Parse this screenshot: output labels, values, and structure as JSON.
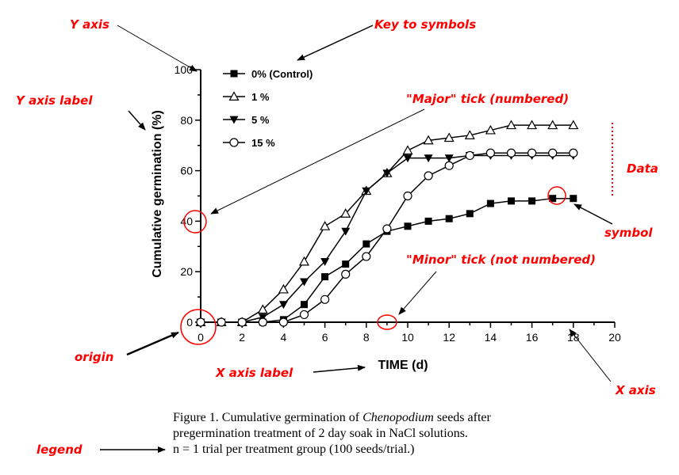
{
  "chart_data": {
    "type": "line",
    "xlabel": "TIME (d)",
    "ylabel": "Cumulative germination (%)",
    "xlim": [
      0,
      20
    ],
    "ylim": [
      0,
      100
    ],
    "xticks": [
      0,
      2,
      4,
      6,
      8,
      10,
      12,
      14,
      16,
      18,
      20
    ],
    "yticks": [
      0,
      20,
      40,
      60,
      80,
      100
    ],
    "grid": false,
    "legend_placement": "top-left",
    "x": [
      0,
      1,
      2,
      3,
      4,
      5,
      6,
      7,
      8,
      9,
      10,
      11,
      12,
      13,
      14,
      15,
      16,
      17,
      18
    ],
    "series": [
      {
        "name": "0% (Control)",
        "marker": "filled-square",
        "values": [
          0,
          0,
          0,
          0,
          1,
          7,
          18,
          23,
          31,
          36,
          38,
          40,
          41,
          43,
          47,
          48,
          48,
          49,
          49
        ]
      },
      {
        "name": "1 %",
        "marker": "open-triangle-up",
        "values": [
          0,
          0,
          0,
          5,
          13,
          24,
          38,
          43,
          52,
          59,
          68,
          72,
          73,
          74,
          76,
          78,
          78,
          78,
          78
        ]
      },
      {
        "name": "5 %",
        "marker": "filled-triangle-down",
        "values": [
          0,
          0,
          0,
          2,
          7,
          16,
          24,
          36,
          52,
          59,
          65,
          65,
          65,
          66,
          66,
          66,
          66,
          66,
          66
        ]
      },
      {
        "name": "15 %",
        "marker": "open-circle",
        "values": [
          0,
          0,
          0,
          0,
          0,
          3,
          9,
          19,
          26,
          37,
          50,
          58,
          62,
          66,
          67,
          67,
          67,
          67,
          67
        ]
      }
    ]
  },
  "annotations": {
    "y_axis": "Y axis",
    "key_to_symbols": "Key to symbols",
    "y_axis_label": "Y axis label",
    "major_tick": "\"Major\" tick (numbered)",
    "data": "Data",
    "symbol": "symbol",
    "minor_tick": "\"Minor\" tick (not numbered)",
    "origin": "origin",
    "x_axis_label": "X axis label",
    "x_axis": "X axis",
    "legend": "legend"
  },
  "caption": {
    "line1_prefix": "Figure 1. Cumulative germination of ",
    "line1_italic": "Chenopodium",
    "line1_suffix": " seeds after",
    "line2": "pregermination treatment of 2 day soak in NaCl solutions.",
    "line3": "n = 1 trial per treatment group (100 seeds/trial.)"
  },
  "colors": {
    "annotation": "#ff0000",
    "ink": "#000000",
    "background": "#ffffff"
  }
}
